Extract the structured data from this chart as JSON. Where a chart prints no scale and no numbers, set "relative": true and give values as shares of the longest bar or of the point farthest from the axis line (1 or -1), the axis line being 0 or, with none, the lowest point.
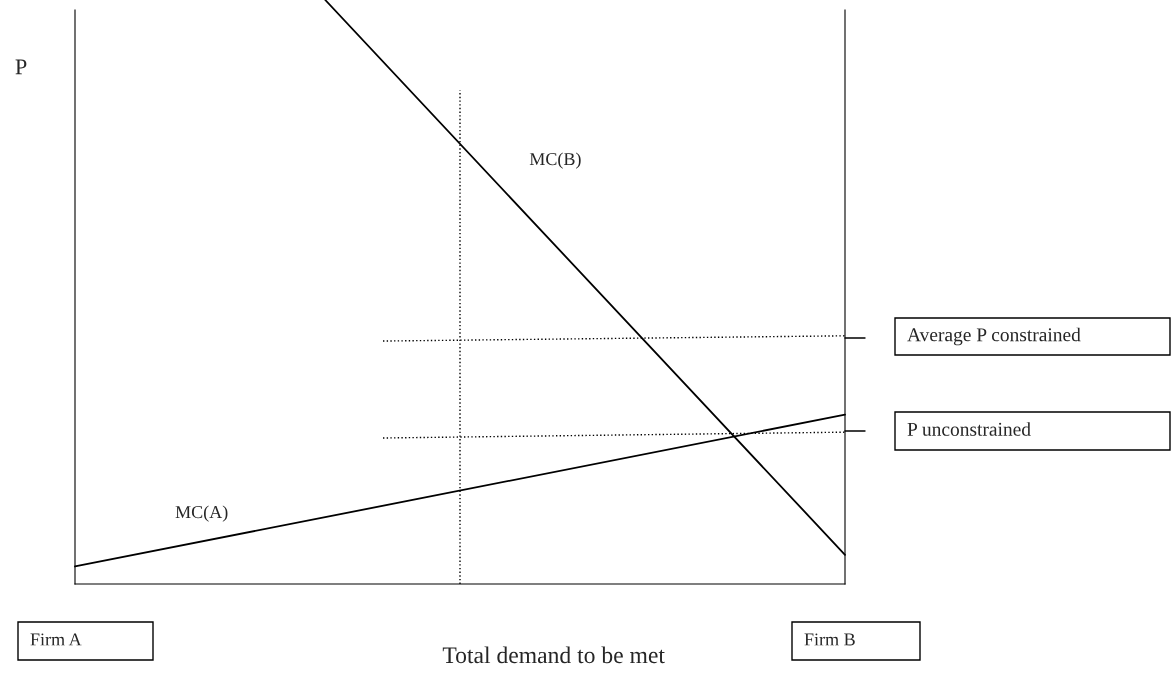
{
  "chart_data": {
    "type": "line",
    "relative": true,
    "ylabel": "P",
    "xlabel": "Total demand to be met",
    "categories": [
      null,
      null,
      null,
      null,
      null,
      null,
      null,
      null,
      null,
      null,
      null,
      null,
      null,
      null,
      null,
      null,
      null,
      null,
      null,
      null,
      null,
      null,
      null,
      null,
      null,
      null,
      null,
      null,
      null,
      null,
      null,
      null,
      null,
      null,
      null,
      null,
      null,
      null,
      null,
      null,
      null
    ],
    "series": [
      {
        "name": "MC(A)",
        "color": "#000000",
        "line_style": "solid",
        "values": [
          0.03,
          null,
          null,
          null,
          null,
          null,
          null,
          null,
          null,
          null,
          null,
          null,
          null,
          null,
          null,
          null,
          null,
          null,
          null,
          null,
          null,
          null,
          null,
          null,
          null,
          null,
          null,
          null,
          null,
          null,
          null,
          null,
          null,
          null,
          null,
          null,
          null,
          null,
          null,
          null,
          0.29
        ]
      },
      {
        "name": "MC(B)",
        "color": "#000000",
        "line_style": "solid",
        "values": [
          null,
          null,
          null,
          null,
          null,
          null,
          null,
          null,
          null,
          null,
          null,
          null,
          null,
          1.0,
          null,
          null,
          null,
          null,
          null,
          null,
          null,
          null,
          null,
          null,
          null,
          null,
          null,
          null,
          null,
          null,
          null,
          null,
          null,
          null,
          null,
          null,
          null,
          null,
          null,
          null,
          0.05
        ]
      },
      {
        "color": "#000000",
        "line_style": "dotted",
        "values": [
          null,
          null,
          null,
          null,
          null,
          null,
          null,
          null,
          null,
          null,
          null,
          null,
          null,
          null,
          null,
          null,
          0.416,
          null,
          null,
          null,
          null,
          null,
          null,
          null,
          null,
          null,
          null,
          null,
          null,
          null,
          null,
          null,
          null,
          null,
          null,
          null,
          null,
          null,
          null,
          null,
          0.425
        ]
      },
      {
        "color": "#000000",
        "line_style": "dotted",
        "values": [
          null,
          null,
          null,
          null,
          null,
          null,
          null,
          null,
          null,
          null,
          null,
          null,
          null,
          null,
          null,
          null,
          0.25,
          null,
          null,
          null,
          null,
          null,
          null,
          null,
          null,
          null,
          null,
          null,
          null,
          null,
          null,
          null,
          null,
          null,
          null,
          null,
          null,
          null,
          null,
          null,
          0.26
        ]
      }
    ],
    "annotations": [
      "Average P constrained",
      "P unconstrained",
      "Firm A",
      "Firm B"
    ],
    "legend": false,
    "grid": false
  }
}
